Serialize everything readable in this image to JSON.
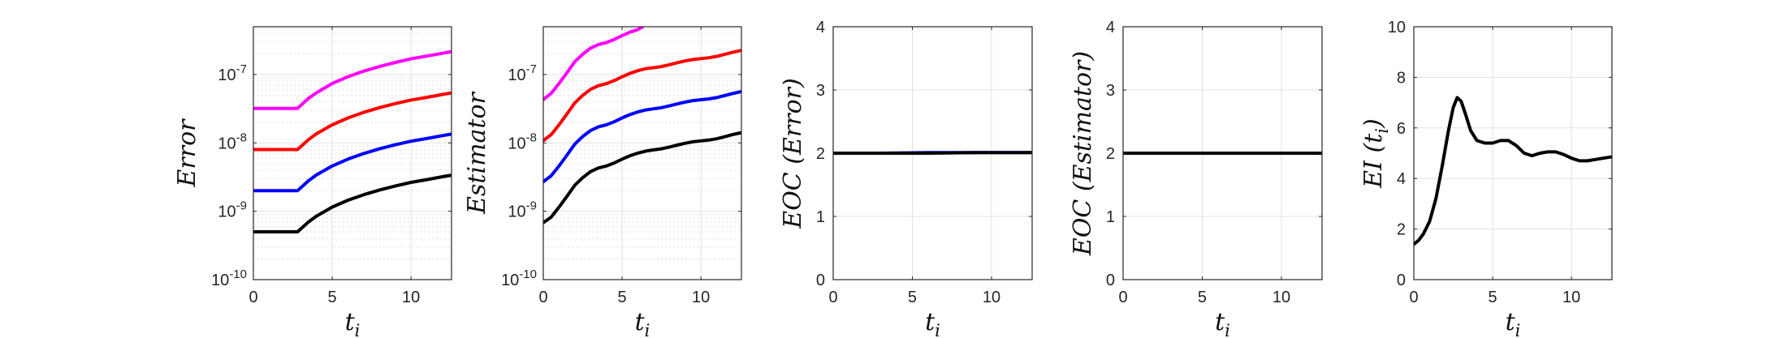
{
  "figure": {
    "series_colors": [
      "#000000",
      "#0000ff",
      "#ff0000",
      "#ff00ff"
    ]
  },
  "chart_data": [
    {
      "type": "line",
      "xlabel": "t_i",
      "ylabel": "Error",
      "xlim": [
        0,
        12.566
      ],
      "ylim": [
        1e-10,
        5e-07
      ],
      "yscale": "log",
      "xticks": [
        0,
        5,
        10
      ],
      "xtick_labels": [
        "0",
        "5",
        "10"
      ],
      "yticks": [
        1e-10,
        1e-09,
        1e-08,
        1e-07
      ],
      "ytick_labels": [
        {
          "base": "10",
          "exp": "-10"
        },
        {
          "base": "10",
          "exp": "-9"
        },
        {
          "base": "10",
          "exp": "-8"
        },
        {
          "base": "10",
          "exp": "-7"
        }
      ],
      "grid": true,
      "minor_grid": true,
      "series": [
        {
          "color": "#000000",
          "x": [
            0,
            0.5,
            1,
            1.5,
            2,
            2.5,
            2.8,
            3.5,
            4,
            5,
            6,
            7,
            8,
            9,
            10,
            11,
            12,
            12.5
          ],
          "values": [
            5e-10,
            5e-10,
            5e-10,
            5e-10,
            5e-10,
            5e-10,
            5e-10,
            7e-10,
            8.5e-10,
            1.15e-09,
            1.45e-09,
            1.75e-09,
            2.05e-09,
            2.35e-09,
            2.65e-09,
            2.9e-09,
            3.2e-09,
            3.35e-09
          ]
        },
        {
          "color": "#0000ff",
          "x": [
            0,
            0.5,
            1,
            1.5,
            2,
            2.5,
            2.8,
            3.5,
            4,
            5,
            6,
            7,
            8,
            9,
            10,
            11,
            12,
            12.5
          ],
          "values": [
            2e-09,
            2e-09,
            2e-09,
            2e-09,
            2e-09,
            2e-09,
            2e-09,
            2.8e-09,
            3.4e-09,
            4.6e-09,
            5.8e-09,
            7e-09,
            8.2e-09,
            9.4e-09,
            1.06e-08,
            1.16e-08,
            1.28e-08,
            1.34e-08
          ]
        },
        {
          "color": "#ff0000",
          "x": [
            0,
            0.5,
            1,
            1.5,
            2,
            2.5,
            2.8,
            3.5,
            4,
            5,
            6,
            7,
            8,
            9,
            10,
            11,
            12,
            12.5
          ],
          "values": [
            8e-09,
            8e-09,
            8e-09,
            8e-09,
            8e-09,
            8e-09,
            8e-09,
            1.12e-08,
            1.36e-08,
            1.84e-08,
            2.32e-08,
            2.8e-08,
            3.28e-08,
            3.76e-08,
            4.24e-08,
            4.64e-08,
            5.12e-08,
            5.36e-08
          ]
        },
        {
          "color": "#ff00ff",
          "x": [
            0,
            0.5,
            1,
            1.5,
            2,
            2.5,
            2.8,
            3.5,
            4,
            5,
            6,
            7,
            8,
            9,
            10,
            11,
            12,
            12.5
          ],
          "values": [
            3.2e-08,
            3.2e-08,
            3.2e-08,
            3.2e-08,
            3.2e-08,
            3.2e-08,
            3.2e-08,
            4.5e-08,
            5.4e-08,
            7.4e-08,
            9.3e-08,
            1.12e-07,
            1.31e-07,
            1.5e-07,
            1.7e-07,
            1.86e-07,
            2.05e-07,
            2.15e-07
          ]
        }
      ]
    },
    {
      "type": "line",
      "xlabel": "t_i",
      "ylabel": "Estimator",
      "xlim": [
        0,
        12.566
      ],
      "ylim": [
        1e-10,
        5e-07
      ],
      "yscale": "log",
      "xticks": [
        0,
        5,
        10
      ],
      "xtick_labels": [
        "0",
        "5",
        "10"
      ],
      "yticks": [
        1e-10,
        1e-09,
        1e-08,
        1e-07
      ],
      "ytick_labels": [
        {
          "base": "10",
          "exp": "-10"
        },
        {
          "base": "10",
          "exp": "-9"
        },
        {
          "base": "10",
          "exp": "-8"
        },
        {
          "base": "10",
          "exp": "-7"
        }
      ],
      "grid": true,
      "minor_grid": true,
      "series": [
        {
          "color": "#000000",
          "x": [
            0,
            0.5,
            1,
            1.5,
            2,
            2.5,
            3,
            3.5,
            4,
            4.5,
            5,
            5.5,
            6,
            6.5,
            7,
            7.5,
            8,
            8.5,
            9,
            9.5,
            10,
            10.5,
            11,
            11.5,
            12,
            12.5
          ],
          "values": [
            6.8e-10,
            8.2e-10,
            1.15e-09,
            1.65e-09,
            2.4e-09,
            3.1e-09,
            3.8e-09,
            4.3e-09,
            4.6e-09,
            5.1e-09,
            5.8e-09,
            6.5e-09,
            7.1e-09,
            7.6e-09,
            7.9e-09,
            8.2e-09,
            8.7e-09,
            9.3e-09,
            9.9e-09,
            1.04e-08,
            1.07e-08,
            1.1e-08,
            1.15e-08,
            1.23e-08,
            1.32e-08,
            1.4e-08
          ]
        },
        {
          "color": "#0000ff",
          "x": [
            0,
            0.5,
            1,
            1.5,
            2,
            2.5,
            3,
            3.5,
            4,
            4.5,
            5,
            5.5,
            6,
            6.5,
            7,
            7.5,
            8,
            8.5,
            9,
            9.5,
            10,
            10.5,
            11,
            11.5,
            12,
            12.5
          ],
          "values": [
            2.7e-09,
            3.3e-09,
            4.6e-09,
            6.6e-09,
            9.6e-09,
            1.24e-08,
            1.52e-08,
            1.72e-08,
            1.84e-08,
            2.04e-08,
            2.32e-08,
            2.6e-08,
            2.84e-08,
            3.04e-08,
            3.16e-08,
            3.28e-08,
            3.48e-08,
            3.72e-08,
            3.96e-08,
            4.16e-08,
            4.28e-08,
            4.4e-08,
            4.6e-08,
            4.92e-08,
            5.28e-08,
            5.6e-08
          ]
        },
        {
          "color": "#ff0000",
          "x": [
            0,
            0.5,
            1,
            1.5,
            2,
            2.5,
            3,
            3.5,
            4,
            4.5,
            5,
            5.5,
            6,
            6.5,
            7,
            7.5,
            8,
            8.5,
            9,
            9.5,
            10,
            10.5,
            11,
            11.5,
            12,
            12.5
          ],
          "values": [
            1.08e-08,
            1.32e-08,
            1.84e-08,
            2.64e-08,
            3.84e-08,
            4.96e-08,
            6.08e-08,
            6.88e-08,
            7.36e-08,
            8.16e-08,
            9.28e-08,
            1.04e-07,
            1.14e-07,
            1.22e-07,
            1.26e-07,
            1.31e-07,
            1.39e-07,
            1.49e-07,
            1.58e-07,
            1.66e-07,
            1.71e-07,
            1.76e-07,
            1.84e-07,
            1.97e-07,
            2.11e-07,
            2.24e-07
          ]
        },
        {
          "color": "#ff00ff",
          "x": [
            0,
            0.5,
            1,
            1.5,
            2,
            2.5,
            3,
            3.5,
            4,
            4.5,
            5,
            5.5,
            6,
            6.3
          ],
          "values": [
            4.3e-08,
            5.3e-08,
            7.4e-08,
            1.06e-07,
            1.54e-07,
            1.98e-07,
            2.43e-07,
            2.75e-07,
            2.94e-07,
            3.26e-07,
            3.71e-07,
            4.16e-07,
            4.54e-07,
            5e-07
          ]
        }
      ]
    },
    {
      "type": "line",
      "xlabel": "t_i",
      "ylabel": "EOC (Error)",
      "xlim": [
        0,
        12.566
      ],
      "ylim": [
        0,
        4
      ],
      "yscale": "linear",
      "xticks": [
        0,
        5,
        10
      ],
      "xtick_labels": [
        "0",
        "5",
        "10"
      ],
      "yticks": [
        0,
        1,
        2,
        3,
        4
      ],
      "ytick_labels": [
        "0",
        "1",
        "2",
        "3",
        "4"
      ],
      "grid": true,
      "minor_grid": false,
      "series": [
        {
          "color": "#0000ff",
          "x": [
            0,
            3,
            6,
            9,
            12.5
          ],
          "values": [
            2.0,
            2.0,
            2.01,
            2.01,
            2.01
          ]
        },
        {
          "color": "#000000",
          "x": [
            0,
            3,
            6,
            9,
            12.5
          ],
          "values": [
            2.0,
            2.0,
            2.0,
            2.01,
            2.01
          ]
        }
      ]
    },
    {
      "type": "line",
      "xlabel": "t_i",
      "ylabel": "EOC (Estimator)",
      "xlim": [
        0,
        12.566
      ],
      "ylim": [
        0,
        4
      ],
      "yscale": "linear",
      "xticks": [
        0,
        5,
        10
      ],
      "xtick_labels": [
        "0",
        "5",
        "10"
      ],
      "yticks": [
        0,
        1,
        2,
        3,
        4
      ],
      "ytick_labels": [
        "0",
        "1",
        "2",
        "3",
        "4"
      ],
      "grid": true,
      "minor_grid": false,
      "series": [
        {
          "color": "#000000",
          "x": [
            0,
            3,
            6,
            9,
            12.5
          ],
          "values": [
            2.0,
            2.0,
            2.0,
            2.0,
            2.0
          ]
        }
      ]
    },
    {
      "type": "line",
      "xlabel": "t_i",
      "ylabel": "EI (t_i)",
      "xlim": [
        0,
        12.566
      ],
      "ylim": [
        0,
        10
      ],
      "yscale": "linear",
      "xticks": [
        0,
        5,
        10
      ],
      "xtick_labels": [
        "0",
        "5",
        "10"
      ],
      "yticks": [
        0,
        2,
        4,
        6,
        8,
        10
      ],
      "ytick_labels": [
        "0",
        "2",
        "4",
        "6",
        "8",
        "10"
      ],
      "grid": true,
      "minor_grid": false,
      "series": [
        {
          "color": "#000000",
          "x": [
            0,
            0.3,
            0.6,
            1,
            1.4,
            1.8,
            2.2,
            2.5,
            2.75,
            3,
            3.3,
            3.6,
            4,
            4.5,
            5,
            5.5,
            6,
            6.5,
            7,
            7.5,
            8,
            8.5,
            9,
            9.5,
            10,
            10.5,
            11,
            11.5,
            12,
            12.5
          ],
          "values": [
            1.4,
            1.55,
            1.8,
            2.3,
            3.2,
            4.5,
            5.9,
            6.8,
            7.2,
            7.05,
            6.5,
            5.9,
            5.5,
            5.4,
            5.4,
            5.5,
            5.5,
            5.3,
            5.0,
            4.9,
            5.0,
            5.05,
            5.05,
            4.95,
            4.8,
            4.7,
            4.7,
            4.75,
            4.8,
            4.85
          ]
        }
      ]
    }
  ]
}
